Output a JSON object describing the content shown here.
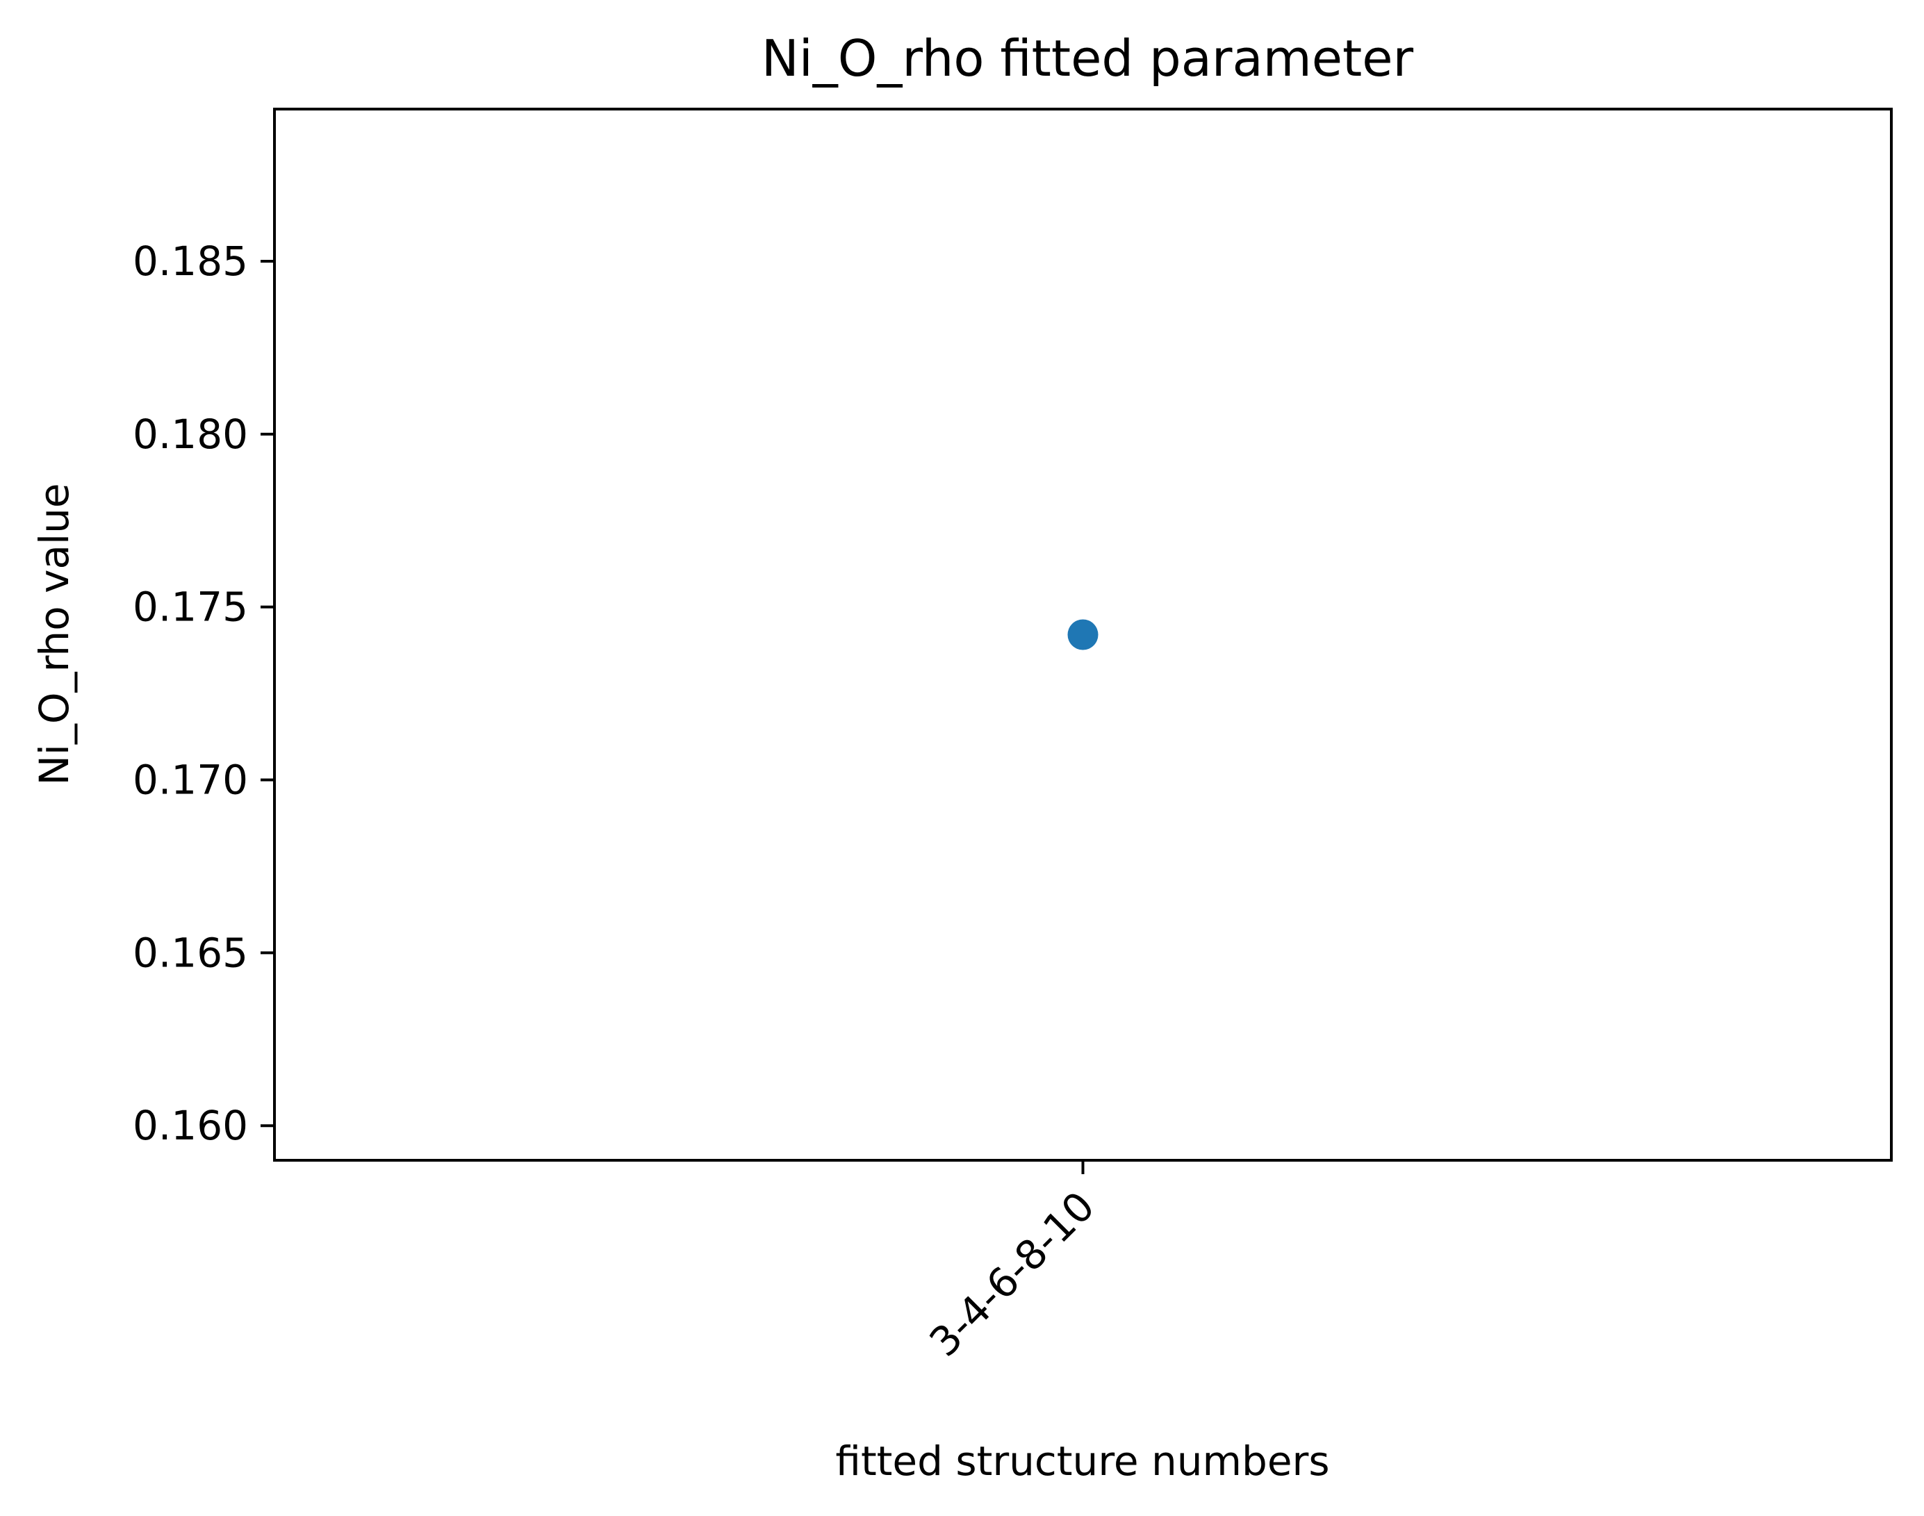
{
  "chart_data": {
    "type": "scatter",
    "title": "Ni_O_rho fitted parameter",
    "xlabel": "fitted structure numbers",
    "ylabel": "Ni_O_rho value",
    "categories": [
      "3-4-6-8-10"
    ],
    "series": [
      {
        "values": [
          0.1742
        ]
      }
    ],
    "ylim": [
      0.159,
      0.1894
    ],
    "yticks": [
      0.16,
      0.165,
      0.17,
      0.175,
      0.18,
      0.185
    ],
    "ytick_labels": [
      "0.160",
      "0.165",
      "0.170",
      "0.175",
      "0.180",
      "0.185"
    ],
    "x_tick_rotation_deg": 45,
    "grid": false,
    "legend": "none",
    "colors": {
      "marker": "#1f77b4",
      "axes": "#000000"
    }
  }
}
